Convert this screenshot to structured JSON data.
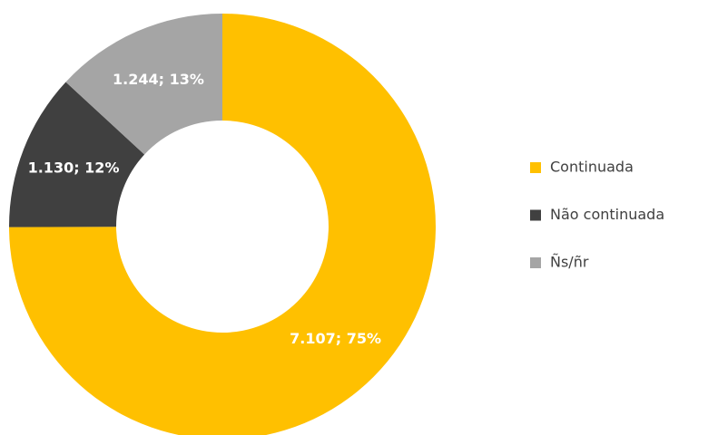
{
  "chart_data": {
    "type": "donut",
    "categories": [
      "Continuada",
      "Não continuada",
      "Ñs/ñr"
    ],
    "values": [
      7107,
      1130,
      1244
    ],
    "value_labels": [
      "7.107; 75%",
      "1.130; 12%",
      "1.244; 13%"
    ],
    "colors": [
      "#ffc000",
      "#404040",
      "#a5a5a5"
    ],
    "legend": "right"
  }
}
